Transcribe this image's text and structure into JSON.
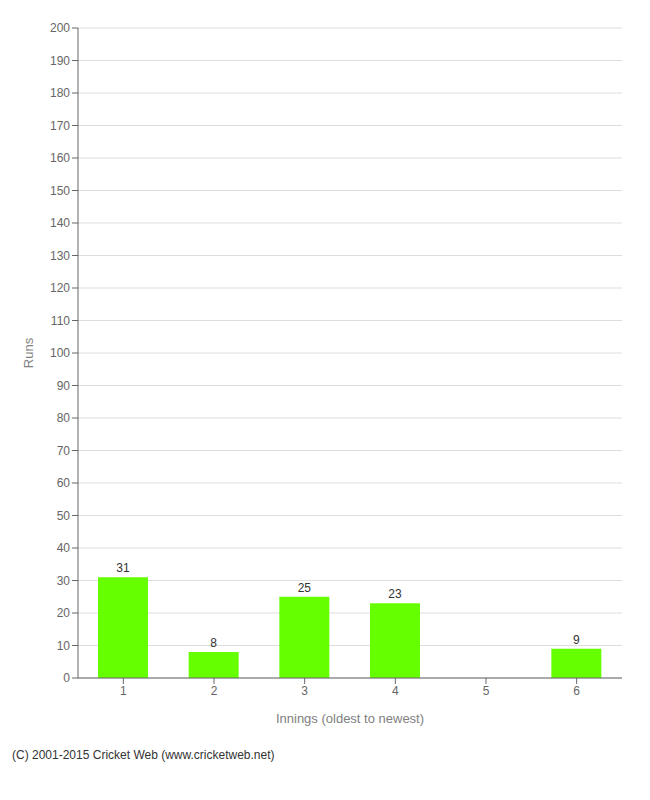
{
  "chart_data": {
    "type": "bar",
    "categories": [
      "1",
      "2",
      "3",
      "4",
      "5",
      "6"
    ],
    "values": [
      31,
      8,
      25,
      23,
      0,
      9
    ],
    "color": "#66ff00",
    "xlabel": "Innings (oldest to newest)",
    "ylabel": "Runs",
    "ylim": [
      0,
      200
    ],
    "yticks": [
      0,
      10,
      20,
      30,
      40,
      50,
      60,
      70,
      80,
      90,
      100,
      110,
      120,
      130,
      140,
      150,
      160,
      170,
      180,
      190,
      200
    ],
    "grid": true,
    "data_labels": true,
    "annotations": [
      "(C) 2001-2015 Cricket Web (www.cricketweb.net)"
    ]
  }
}
